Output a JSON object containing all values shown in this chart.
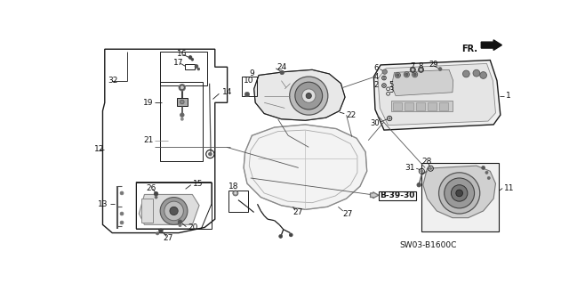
{
  "bg_color": "#ffffff",
  "diagram_code": "SW03-B1600C",
  "ref_code": "B-39-30",
  "line_color": "#1a1a1a",
  "text_color": "#111111",
  "gray": "#888888",
  "dark": "#333333"
}
